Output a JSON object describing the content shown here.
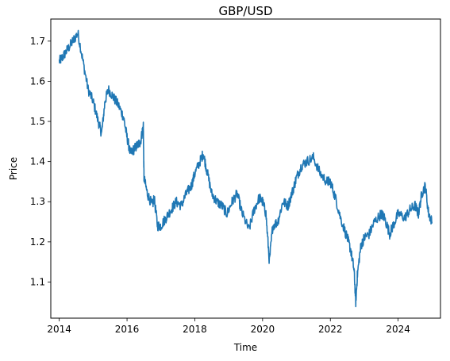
{
  "chart_data": {
    "type": "line",
    "title": "GBP/USD",
    "xlabel": "Time",
    "ylabel": "Price",
    "xlim": [
      2013.75,
      2025.25
    ],
    "ylim": [
      1.01,
      1.755
    ],
    "grid": false,
    "x_ticks": [
      2014,
      2016,
      2018,
      2020,
      2022,
      2024
    ],
    "x_tick_labels": [
      "2014",
      "2016",
      "2018",
      "2020",
      "2022",
      "2024"
    ],
    "y_ticks": [
      1.1,
      1.2,
      1.3,
      1.4,
      1.5,
      1.6,
      1.7
    ],
    "y_tick_labels": [
      "1.1",
      "1.2",
      "1.3",
      "1.4",
      "1.5",
      "1.6",
      "1.7"
    ],
    "series": [
      {
        "color": "#1f77b4",
        "x": [
          2014.0,
          2014.1,
          2014.25,
          2014.4,
          2014.55,
          2014.7,
          2014.85,
          2015.0,
          2015.15,
          2015.25,
          2015.35,
          2015.45,
          2015.6,
          2015.75,
          2015.9,
          2016.0,
          2016.1,
          2016.2,
          2016.3,
          2016.4,
          2016.48,
          2016.5,
          2016.6,
          2016.75,
          2016.8,
          2016.9,
          2017.0,
          2017.15,
          2017.3,
          2017.45,
          2017.6,
          2017.75,
          2017.9,
          2018.0,
          2018.15,
          2018.25,
          2018.35,
          2018.5,
          2018.65,
          2018.8,
          2018.95,
          2019.1,
          2019.25,
          2019.4,
          2019.6,
          2019.75,
          2019.9,
          2020.0,
          2020.1,
          2020.2,
          2020.3,
          2020.45,
          2020.6,
          2020.75,
          2020.9,
          2021.0,
          2021.15,
          2021.3,
          2021.5,
          2021.7,
          2021.9,
          2022.0,
          2022.15,
          2022.3,
          2022.5,
          2022.6,
          2022.7,
          2022.75,
          2022.8,
          2022.9,
          2023.0,
          2023.15,
          2023.3,
          2023.5,
          2023.6,
          2023.75,
          2023.85,
          2024.0,
          2024.2,
          2024.35,
          2024.5,
          2024.6,
          2024.7,
          2024.8,
          2024.9,
          2025.0
        ],
        "y": [
          1.65,
          1.66,
          1.68,
          1.7,
          1.72,
          1.65,
          1.58,
          1.55,
          1.5,
          1.47,
          1.55,
          1.58,
          1.56,
          1.54,
          1.51,
          1.46,
          1.42,
          1.43,
          1.44,
          1.45,
          1.49,
          1.36,
          1.32,
          1.29,
          1.31,
          1.24,
          1.24,
          1.26,
          1.28,
          1.3,
          1.29,
          1.32,
          1.34,
          1.37,
          1.4,
          1.42,
          1.38,
          1.32,
          1.3,
          1.29,
          1.27,
          1.3,
          1.32,
          1.27,
          1.23,
          1.28,
          1.31,
          1.3,
          1.27,
          1.15,
          1.24,
          1.25,
          1.3,
          1.29,
          1.33,
          1.36,
          1.39,
          1.4,
          1.41,
          1.37,
          1.35,
          1.35,
          1.31,
          1.26,
          1.21,
          1.18,
          1.13,
          1.05,
          1.12,
          1.19,
          1.21,
          1.22,
          1.25,
          1.27,
          1.26,
          1.22,
          1.24,
          1.27,
          1.26,
          1.28,
          1.29,
          1.27,
          1.32,
          1.34,
          1.27,
          1.25
        ]
      }
    ]
  }
}
